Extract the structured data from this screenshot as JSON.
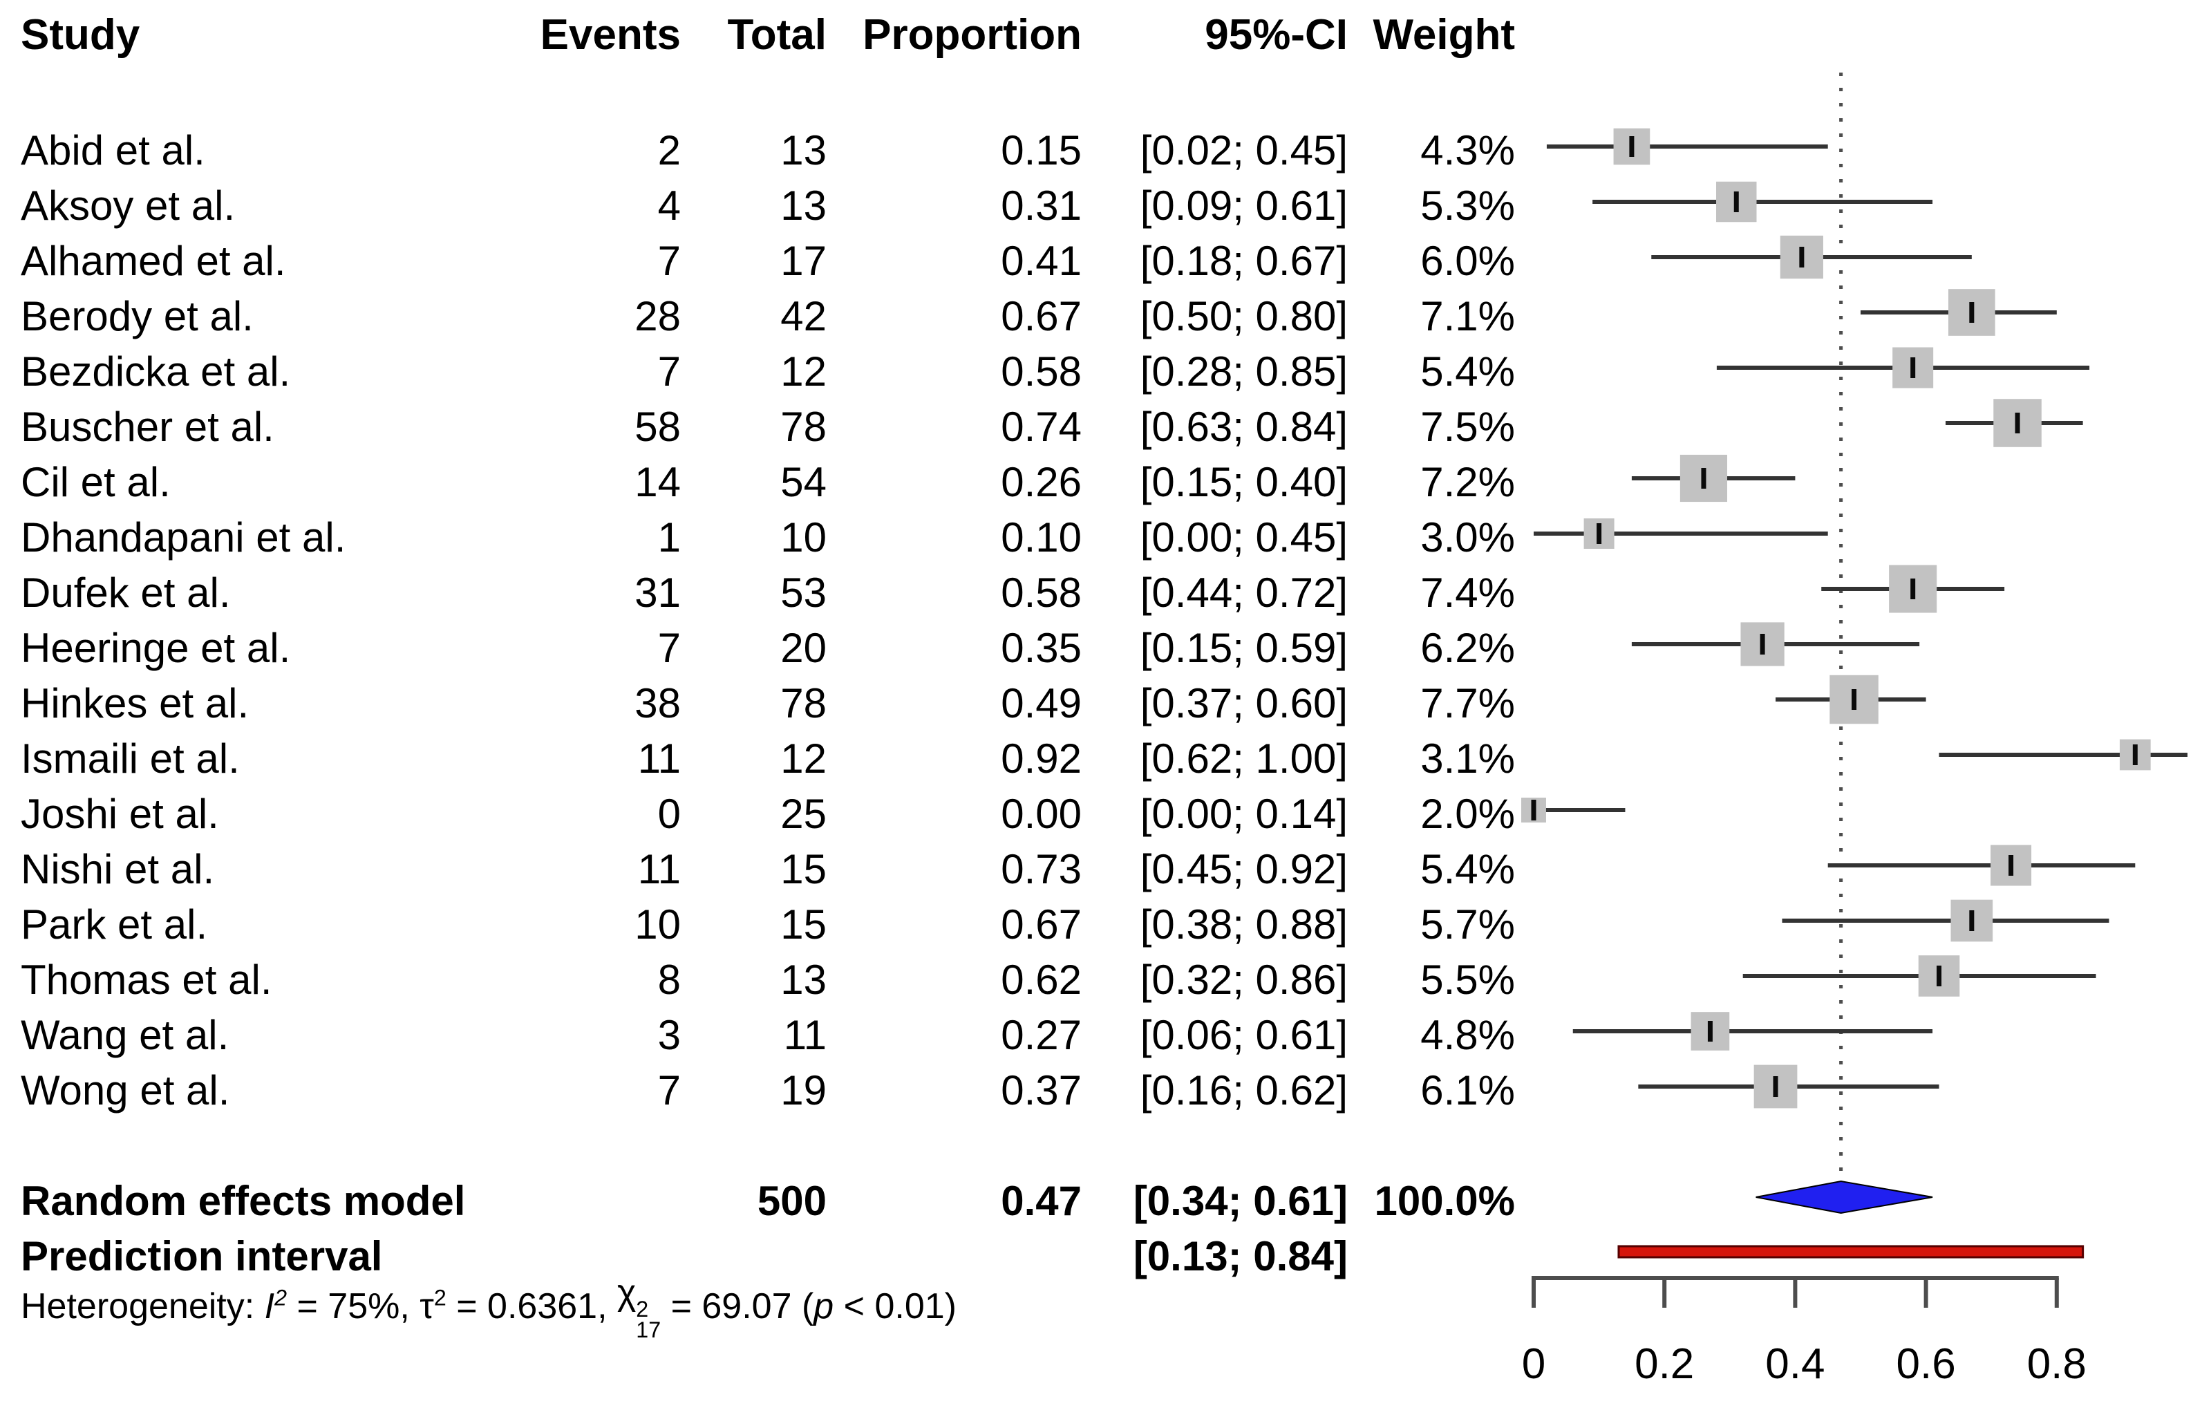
{
  "colors": {
    "background": "#ffffff",
    "text": "#000000",
    "square": "#c2c2c2",
    "ci_line": "#333333",
    "estimate_tick": "#0a0a0a",
    "ref_line_dotted": "#4d4d4d",
    "diamond_fill": "#2020f0",
    "diamond_stroke": "#000000",
    "prediction_fill": "#d5150b",
    "prediction_stroke": "#550000",
    "axis": "#4d4d4d"
  },
  "chart_data": {
    "type": "forest",
    "title": "",
    "columns": [
      "Study",
      "Events",
      "Total",
      "Proportion",
      "95%-CI",
      "Weight"
    ],
    "studies": [
      {
        "study": "Abid et al.",
        "events": "2",
        "total": "13",
        "proportion": "0.15",
        "ci": "[0.02; 0.45]",
        "est": 0.15,
        "lo": 0.02,
        "hi": 0.45,
        "weight": "4.3%",
        "w": 4.3
      },
      {
        "study": "Aksoy et al.",
        "events": "4",
        "total": "13",
        "proportion": "0.31",
        "ci": "[0.09; 0.61]",
        "est": 0.31,
        "lo": 0.09,
        "hi": 0.61,
        "weight": "5.3%",
        "w": 5.3
      },
      {
        "study": "Alhamed et al.",
        "events": "7",
        "total": "17",
        "proportion": "0.41",
        "ci": "[0.18; 0.67]",
        "est": 0.41,
        "lo": 0.18,
        "hi": 0.67,
        "weight": "6.0%",
        "w": 6.0
      },
      {
        "study": "Berody et al.",
        "events": "28",
        "total": "42",
        "proportion": "0.67",
        "ci": "[0.50; 0.80]",
        "est": 0.67,
        "lo": 0.5,
        "hi": 0.8,
        "weight": "7.1%",
        "w": 7.1
      },
      {
        "study": "Bezdicka et al.",
        "events": "7",
        "total": "12",
        "proportion": "0.58",
        "ci": "[0.28; 0.85]",
        "est": 0.58,
        "lo": 0.28,
        "hi": 0.85,
        "weight": "5.4%",
        "w": 5.4
      },
      {
        "study": "Buscher et al.",
        "events": "58",
        "total": "78",
        "proportion": "0.74",
        "ci": "[0.63; 0.84]",
        "est": 0.74,
        "lo": 0.63,
        "hi": 0.84,
        "weight": "7.5%",
        "w": 7.5
      },
      {
        "study": "Cil et al.",
        "events": "14",
        "total": "54",
        "proportion": "0.26",
        "ci": "[0.15; 0.40]",
        "est": 0.26,
        "lo": 0.15,
        "hi": 0.4,
        "weight": "7.2%",
        "w": 7.2
      },
      {
        "study": "Dhandapani et al.",
        "events": "1",
        "total": "10",
        "proportion": "0.10",
        "ci": "[0.00; 0.45]",
        "est": 0.1,
        "lo": 0.0,
        "hi": 0.45,
        "weight": "3.0%",
        "w": 3.0
      },
      {
        "study": "Dufek et al.",
        "events": "31",
        "total": "53",
        "proportion": "0.58",
        "ci": "[0.44; 0.72]",
        "est": 0.58,
        "lo": 0.44,
        "hi": 0.72,
        "weight": "7.4%",
        "w": 7.4
      },
      {
        "study": "Heeringe et al.",
        "events": "7",
        "total": "20",
        "proportion": "0.35",
        "ci": "[0.15; 0.59]",
        "est": 0.35,
        "lo": 0.15,
        "hi": 0.59,
        "weight": "6.2%",
        "w": 6.2
      },
      {
        "study": "Hinkes et al.",
        "events": "38",
        "total": "78",
        "proportion": "0.49",
        "ci": "[0.37; 0.60]",
        "est": 0.49,
        "lo": 0.37,
        "hi": 0.6,
        "weight": "7.7%",
        "w": 7.7
      },
      {
        "study": "Ismaili et al.",
        "events": "11",
        "total": "12",
        "proportion": "0.92",
        "ci": "[0.62; 1.00]",
        "est": 0.92,
        "lo": 0.62,
        "hi": 1.0,
        "weight": "3.1%",
        "w": 3.1
      },
      {
        "study": "Joshi et al.",
        "events": "0",
        "total": "25",
        "proportion": "0.00",
        "ci": "[0.00; 0.14]",
        "est": 0.0,
        "lo": 0.0,
        "hi": 0.14,
        "weight": "2.0%",
        "w": 2.0
      },
      {
        "study": "Nishi et al.",
        "events": "11",
        "total": "15",
        "proportion": "0.73",
        "ci": "[0.45; 0.92]",
        "est": 0.73,
        "lo": 0.45,
        "hi": 0.92,
        "weight": "5.4%",
        "w": 5.4
      },
      {
        "study": "Park et al.",
        "events": "10",
        "total": "15",
        "proportion": "0.67",
        "ci": "[0.38; 0.88]",
        "est": 0.67,
        "lo": 0.38,
        "hi": 0.88,
        "weight": "5.7%",
        "w": 5.7
      },
      {
        "study": "Thomas et al.",
        "events": "8",
        "total": "13",
        "proportion": "0.62",
        "ci": "[0.32; 0.86]",
        "est": 0.62,
        "lo": 0.32,
        "hi": 0.86,
        "weight": "5.5%",
        "w": 5.5
      },
      {
        "study": "Wang et al.",
        "events": "3",
        "total": "11",
        "proportion": "0.27",
        "ci": "[0.06; 0.61]",
        "est": 0.27,
        "lo": 0.06,
        "hi": 0.61,
        "weight": "4.8%",
        "w": 4.8
      },
      {
        "study": "Wong et al.",
        "events": "7",
        "total": "19",
        "proportion": "0.37",
        "ci": "[0.16; 0.62]",
        "est": 0.37,
        "lo": 0.16,
        "hi": 0.62,
        "weight": "6.1%",
        "w": 6.1
      }
    ],
    "overall": {
      "label": "Random effects model",
      "total": "500",
      "proportion": "0.47",
      "ci": "[0.34; 0.61]",
      "weight": "100.0%",
      "est": 0.47,
      "lo": 0.34,
      "hi": 0.61
    },
    "prediction": {
      "label": "Prediction interval",
      "ci": "[0.13; 0.84]",
      "lo": 0.13,
      "hi": 0.84
    },
    "heterogeneity_segments": [
      {
        "t": "Heterogeneity: "
      },
      {
        "t": "I",
        "italic": true,
        "sup": "2"
      },
      {
        "t": " = 75%, "
      },
      {
        "t": "τ",
        "sup": "2"
      },
      {
        "t": " = 0.6361, "
      },
      {
        "t": "χ",
        "stack_sup": "2",
        "stack_sub": "17"
      },
      {
        "t": " = 69.07 ("
      },
      {
        "t": "p",
        "italic": true
      },
      {
        "t": " < 0.01)"
      }
    ],
    "x_axis": {
      "range": [
        0,
        1
      ],
      "ticks": [
        0,
        0.2,
        0.4,
        0.6,
        0.8
      ],
      "tick_labels": [
        "0",
        "0.2",
        "0.4",
        "0.6",
        "0.8"
      ],
      "ref_line": 0.47,
      "grid": false,
      "legend": "none"
    }
  }
}
